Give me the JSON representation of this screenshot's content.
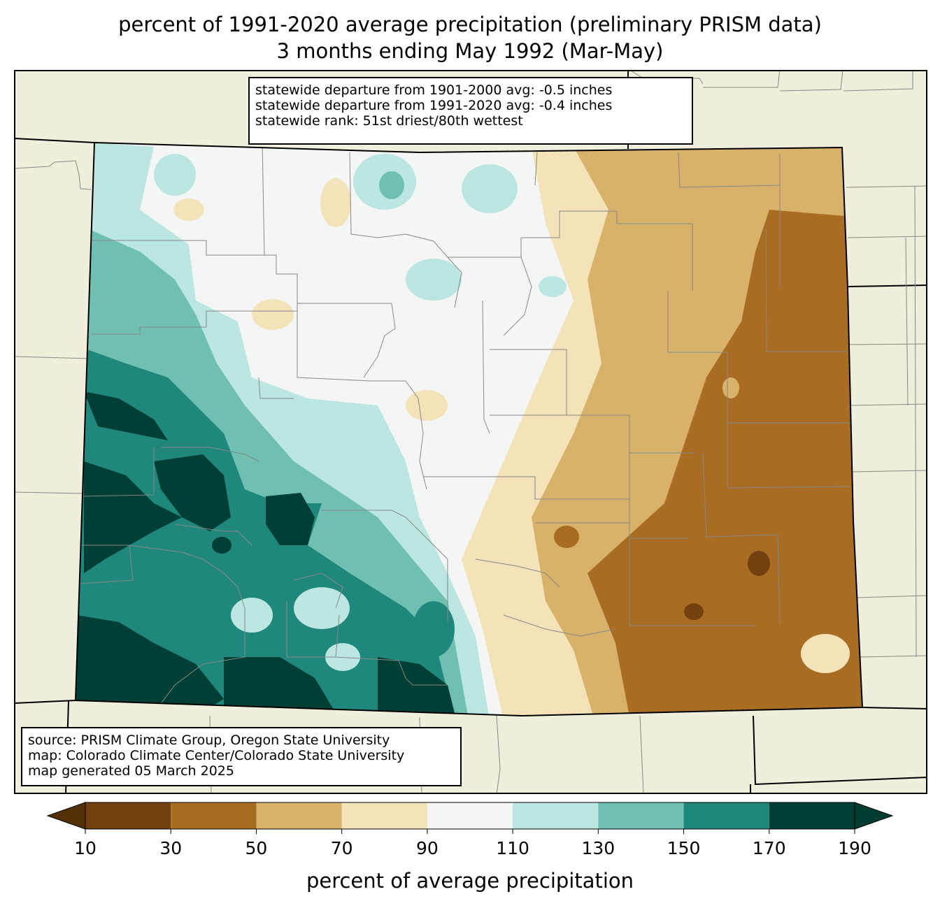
{
  "title_line1": "percent of 1991-2020 average precipitation (preliminary PRISM data)",
  "title_line2": "3 months ending May 1992 (Mar-May)",
  "stats": [
    "statewide departure from 1901-2000 avg: -0.5 inches",
    "statewide departure from 1991-2020 avg: -0.4 inches",
    "statewide rank: 51st driest/80th wettest"
  ],
  "credits": [
    "source: PRISM Climate Group, Oregon State University",
    "map: Colorado Climate Center/Colorado State University",
    "map generated 05 March 2025"
  ],
  "colorbar": {
    "label": "percent of average precipitation",
    "ticks": [
      "10",
      "30",
      "50",
      "70",
      "90",
      "110",
      "130",
      "150",
      "170",
      "190"
    ],
    "colors": [
      "#734010",
      "#a86c23",
      "#d8b26b",
      "#f4e3b9",
      "#f4f5f5",
      "#bce6e0",
      "#70c0b2",
      "#20877c",
      "#003f36"
    ],
    "under_color": "#543005",
    "over_color": "#003c30"
  },
  "map_colors": {
    "background": "#f0eedc",
    "state_fill": "#f4f5f5"
  }
}
